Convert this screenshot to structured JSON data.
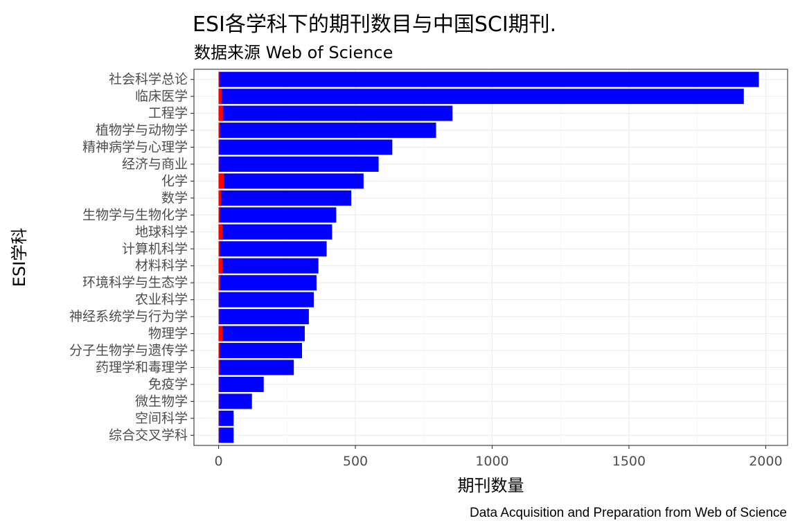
{
  "chart_data": {
    "type": "bar",
    "orientation": "horizontal",
    "title": "ESI各学科下的期刊数目与中国SCI期刊.",
    "subtitle": "数据来源 Web of Science",
    "caption": "Data Acquisition and Preparation from Web of Science",
    "xlabel": "期刊数量",
    "ylabel": "ESI学科",
    "xlim": [
      -90,
      2080
    ],
    "x_ticks": [
      0,
      500,
      1000,
      1500,
      2000
    ],
    "grid": true,
    "categories": [
      "社会科学总论",
      "临床医学",
      "工程学",
      "植物学与动物学",
      "精神病学与心理学",
      "经济与商业",
      "化学",
      "数学",
      "生物学与生物化学",
      "地球科学",
      "计算机科学",
      "材料科学",
      "环境科学与生态学",
      "农业科学",
      "神经系统学与行为学",
      "物理学",
      "分子生物学与遗传学",
      "药理学和毒理学",
      "免疫学",
      "微生物学",
      "空间科学",
      "综合交叉学科"
    ],
    "series": [
      {
        "values": [
          1975,
          1920,
          855,
          795,
          635,
          585,
          530,
          485,
          430,
          415,
          395,
          365,
          358,
          348,
          330,
          315,
          305,
          275,
          165,
          122,
          55,
          55
        ],
        "color": "#0000ff"
      },
      {
        "values": [
          3,
          12,
          17,
          5,
          2,
          2,
          20,
          9,
          4,
          14,
          4,
          14,
          6,
          1,
          2,
          14,
          4,
          3,
          1,
          1,
          1,
          1
        ],
        "color": "#ff0000"
      }
    ]
  }
}
